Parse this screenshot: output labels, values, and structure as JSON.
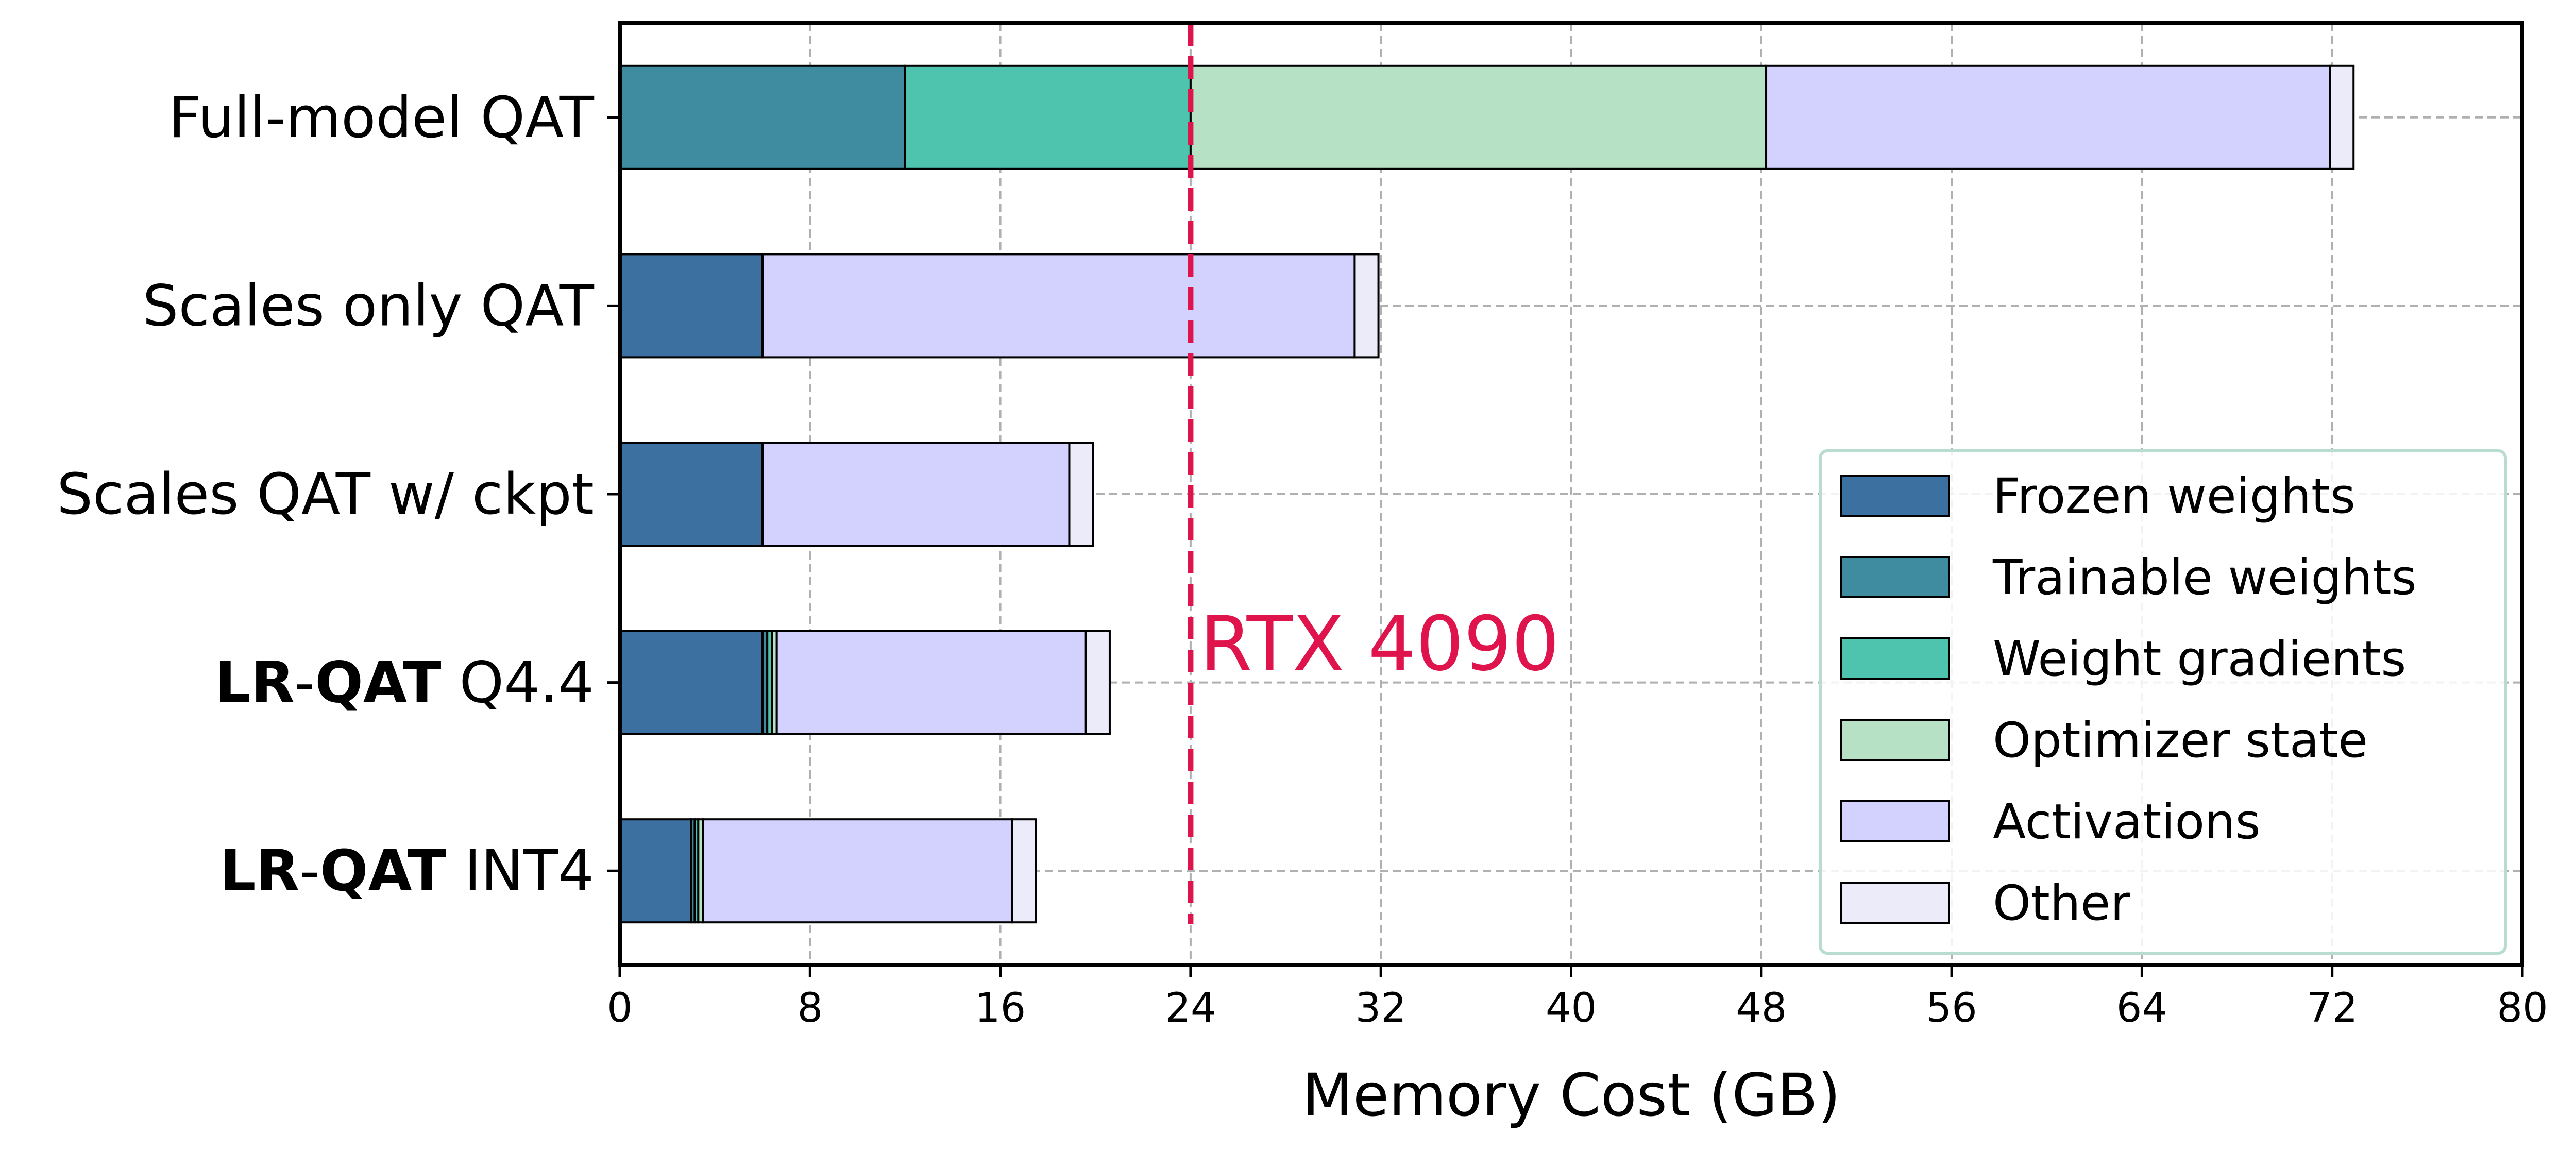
{
  "chart_data": {
    "type": "bar",
    "orientation": "horizontal",
    "stacked": true,
    "xlabel": "Memory Cost (GB)",
    "xlim": [
      0,
      80
    ],
    "xticks": [
      0,
      8,
      16,
      24,
      32,
      40,
      48,
      56,
      64,
      72,
      80
    ],
    "grid": true,
    "legend_position": "lower-right",
    "categories": [
      {
        "bold": "LR",
        "sep": "-",
        "bold2": "QAT",
        "rest": " INT4"
      },
      {
        "bold": "LR",
        "sep": "-",
        "bold2": "QAT",
        "rest": " Q4.4"
      },
      {
        "bold": "",
        "sep": "",
        "bold2": "",
        "rest": "Scales QAT w/ ckpt"
      },
      {
        "bold": "",
        "sep": "",
        "bold2": "",
        "rest": "Scales only QAT"
      },
      {
        "bold": "",
        "sep": "",
        "bold2": "",
        "rest": "Full-model QAT"
      }
    ],
    "series": [
      {
        "name": "Frozen weights",
        "color": "#3b70a0",
        "values": [
          3.0,
          6.0,
          6.0,
          6.0,
          0.0
        ]
      },
      {
        "name": "Trainable weights",
        "color": "#3f8ca0",
        "values": [
          0.15,
          0.2,
          0.0,
          0.0,
          12.0
        ]
      },
      {
        "name": "Weight gradients",
        "color": "#4ec4ae",
        "values": [
          0.15,
          0.2,
          0.0,
          0.0,
          12.0
        ]
      },
      {
        "name": "Optimizer state",
        "color": "#b6e1c4",
        "values": [
          0.2,
          0.2,
          0.0,
          0.0,
          24.2
        ]
      },
      {
        "name": "Activations",
        "color": "#d3d2ff",
        "values": [
          13.0,
          13.0,
          12.9,
          24.9,
          23.7
        ]
      },
      {
        "name": "Other",
        "color": "#ebebfa",
        "values": [
          1.0,
          1.0,
          1.0,
          1.0,
          1.0
        ]
      }
    ],
    "reference_line": {
      "x": 24,
      "label": "RTX 4090",
      "color": "#e0144c"
    }
  }
}
